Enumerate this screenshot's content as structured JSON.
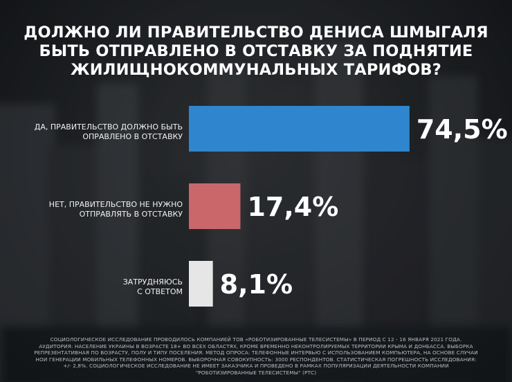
{
  "colors": {
    "bar_yes": "#2f86cf",
    "bar_no": "#c9676b",
    "bar_unsure": "#e6e6e6",
    "text": "#ffffff"
  },
  "title_lines": [
    "ДОЛЖНО ЛИ ПРАВИТЕЛЬСТВО ДЕНИСА ШМЫГАЛЯ",
    "БЫТЬ ОТПРАВЛЕНО В ОТСТАВКУ ЗА ПОДНЯТИЕ",
    "ЖИЛИЩНОКОММУНАЛЬНЫХ ТАРИФОВ?"
  ],
  "chart_data": {
    "type": "bar",
    "orientation": "horizontal",
    "title": "ДОЛЖНО ЛИ ПРАВИТЕЛЬСТВО ДЕНИСА ШМЫГАЛЯ БЫТЬ ОТПРАВЛЕНО В ОТСТАВКУ ЗА ПОДНЯТИЕ ЖИЛИЩНОКОММУНАЛЬНЫХ ТАРИФОВ?",
    "categories": [
      [
        "ДА, ПРАВИТЕЛЬСТВО ДОЛЖНО БЫТЬ",
        "ОПРАВЛЕНО В ОТСТАВКУ"
      ],
      [
        "НЕТ, ПРАВИТЕЛЬСТВО НЕ НУЖНО",
        "ОТПРАВЛЯТЬ В ОТСТАВКУ"
      ],
      [
        "ЗАТРУДНЯЮСЬ",
        "С ОТВЕТОМ"
      ]
    ],
    "values": [
      74.5,
      17.4,
      8.1
    ],
    "value_labels": [
      "74,5%",
      "17,4%",
      "8,1%"
    ],
    "colors": [
      "#2f86cf",
      "#c9676b",
      "#e6e6e6"
    ],
    "xlim": [
      0,
      100
    ],
    "grid": false,
    "legend": "none"
  },
  "footnote": "СОЦИОЛОГИЧЕСКОЕ ИССЛЕДОВАНИЕ ПРОВОДИЛОСЬ КОМПАНИЕЙ ТОВ «РОБОТИЗИРОВАННЫЕ ТЕЛЕСИСТЕМЫ» В ПЕРИОД С 12 - 16 ЯНВАРЯ 2021 ГОДА. АУДИТОРИЯ: НАСЕЛЕНИЕ УКРАИНЫ В ВОЗРАСТЕ 18+ ВО ВСЕХ ОБЛАСТЯХ, КРОМЕ ВРЕМЕННО НЕКОНТРОЛИРУЕМЫХ ТЕРРИТОРИИ КРЫМА И ДОНБАССА. ВЫБОРКА РЕПРЕЗЕНТАТИВНАЯ ПО ВОЗРАСТУ, ПОЛУ И ТИПУ ПОСЕЛЕНИЯ. МЕТОД ОПРОСА: ТЕЛЕФОННЫЕ ИНТЕРВЬЮ С ИСПОЛЬЗОВАНИЕМ КОМПЬЮТЕРА, НА ОСНОВЕ СЛУЧАИ НОИ ГЕНЕРАЦИИ МОБИЛЬНЫХ ТЕЛЕФОННЫХ НОМЕРОВ. ВЫБОРОЧНАЯ СОВОКУПНОСТЬ: 3000 РЕСПОНДЕНТОВ. СТАТИСТИЧЕСКАЯ ПОГРЕШНОСТЬ ИССЛЕДОВАНИЯ: +/- 2,8%. СОЦИОЛОГИЧЕСКОЕ ИССЛЕДОВАНИЕ НЕ ИМЕЕТ ЗАКАЗЧИКА И ПРОВЕДЕНО В РАМКАХ ПОПУЛЯРИЗАЦИИ ДЕЯТЕЛЬНОСТИ КОМПАНИИ \"РОБОТИЗИРОВАННЫЕ ТЕЛЕСИСТЕМЫ\" (РТС)"
}
